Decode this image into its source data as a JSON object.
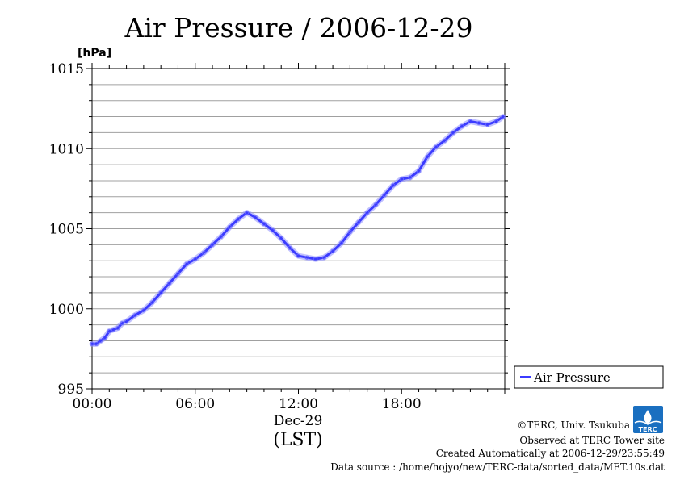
{
  "chart_data": {
    "type": "line",
    "title": "Air Pressure / 2006-12-29",
    "ylabel": "[hPa]",
    "xlabel_date": "Dec-29",
    "xlabel_tz": "(LST)",
    "ylim": [
      995,
      1015
    ],
    "xlim": [
      0,
      24
    ],
    "y_ticks": [
      "1015",
      "1010",
      "1005",
      "1000",
      "995"
    ],
    "y_tick_values": [
      1015,
      1010,
      1005,
      1000,
      995
    ],
    "x_ticks": [
      "00:00",
      "06:00",
      "12:00",
      "18:00"
    ],
    "x_tick_values": [
      0,
      6,
      12,
      18
    ],
    "grid": true,
    "legend_position": "right",
    "series": [
      {
        "name": "Air Pressure",
        "color": "#3b3bff",
        "x": [
          0,
          0.25,
          0.5,
          0.75,
          1,
          1.25,
          1.5,
          1.75,
          2,
          2.5,
          3,
          3.5,
          4,
          4.5,
          5,
          5.5,
          6,
          6.5,
          7,
          7.5,
          8,
          8.5,
          9,
          9.5,
          10,
          10.5,
          11,
          11.5,
          12,
          12.5,
          13,
          13.5,
          14,
          14.5,
          15,
          15.5,
          16,
          16.5,
          17,
          17.5,
          18,
          18.5,
          19,
          19.5,
          20,
          20.5,
          21,
          21.5,
          22,
          22.5,
          23,
          23.5,
          23.9
        ],
        "y": [
          997.8,
          997.8,
          998.0,
          998.2,
          998.6,
          998.7,
          998.8,
          999.1,
          999.2,
          999.6,
          999.9,
          1000.4,
          1001.0,
          1001.6,
          1002.2,
          1002.8,
          1003.1,
          1003.5,
          1004.0,
          1004.5,
          1005.1,
          1005.6,
          1006.0,
          1005.7,
          1005.3,
          1004.9,
          1004.4,
          1003.8,
          1003.3,
          1003.2,
          1003.1,
          1003.2,
          1003.6,
          1004.1,
          1004.8,
          1005.4,
          1006.0,
          1006.5,
          1007.1,
          1007.7,
          1008.1,
          1008.2,
          1008.6,
          1009.5,
          1010.1,
          1010.5,
          1011.0,
          1011.4,
          1011.7,
          1011.6,
          1011.5,
          1011.7,
          1012.0
        ]
      }
    ]
  },
  "legend": {
    "label": "Air Pressure"
  },
  "credits": {
    "line1": "©TERC, Univ. Tsukuba",
    "line2": "Observed at TERC Tower site",
    "line3": "Created Automatically at 2006-12-29/23:55:49",
    "line4": "Data source : /home/hojyo/new/TERC-data/sorted_data/MET.10s.dat",
    "logo_text": "TERC"
  }
}
